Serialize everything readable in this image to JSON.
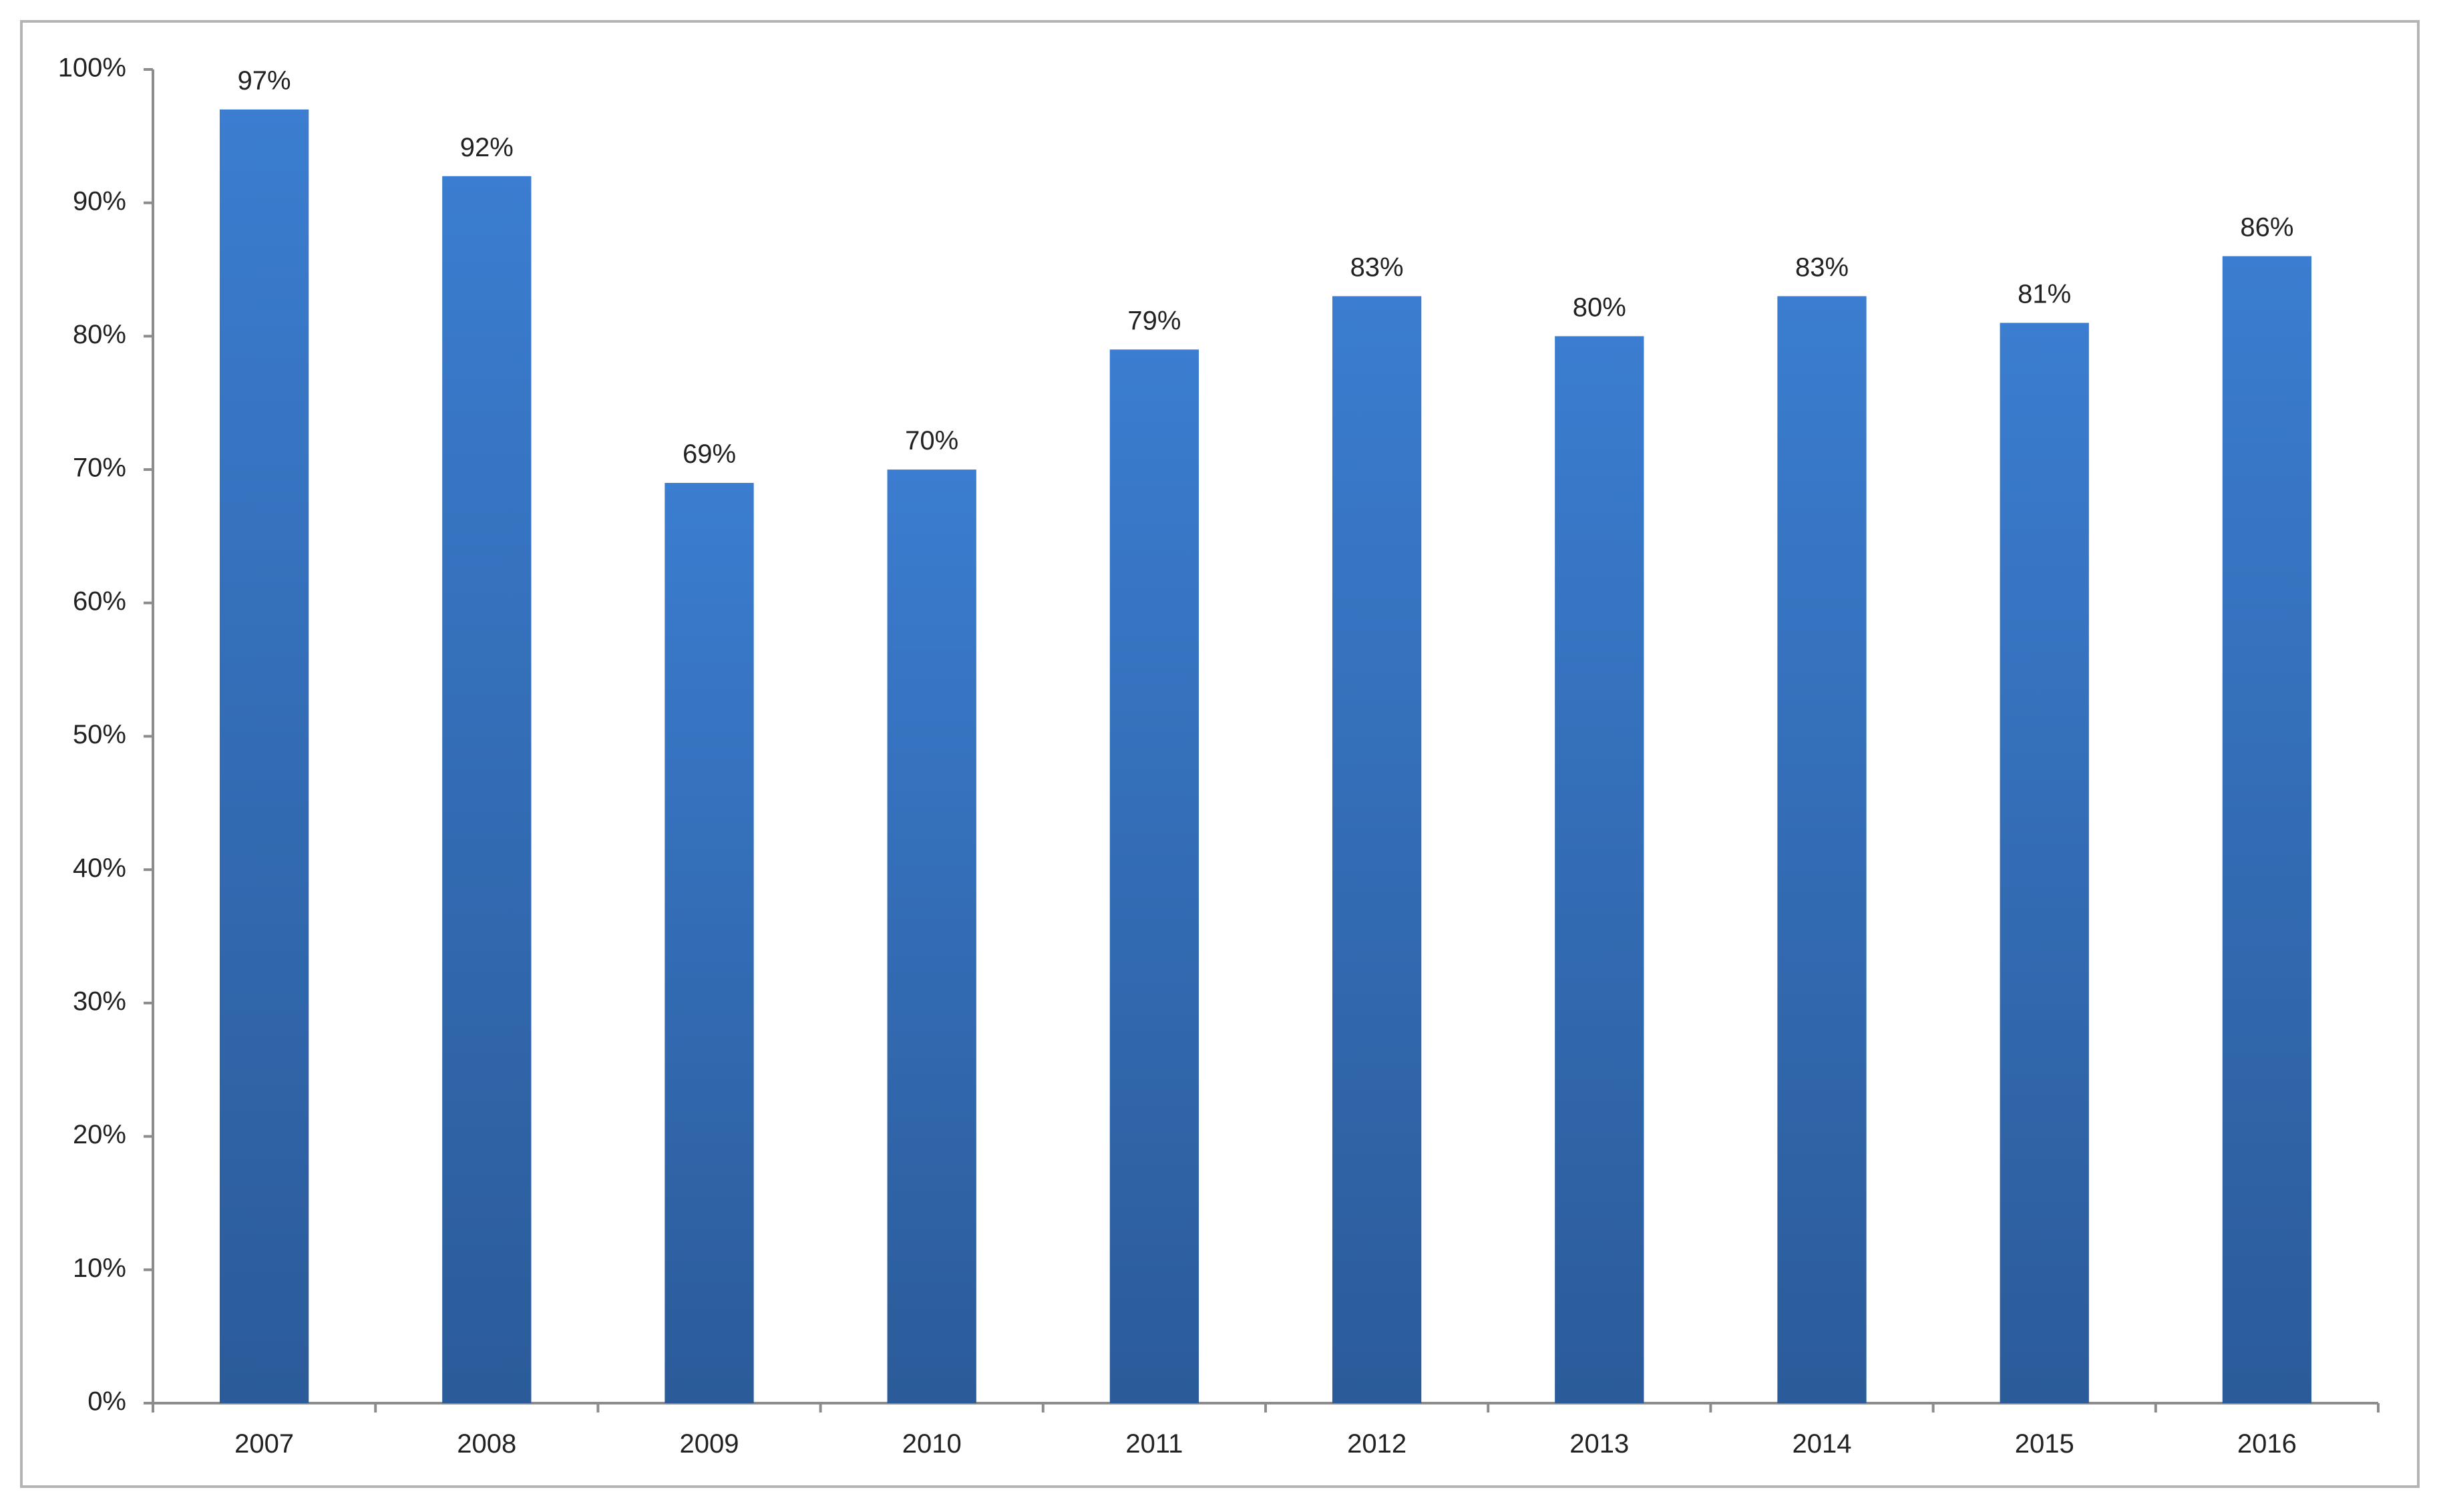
{
  "chart_data": {
    "type": "bar",
    "categories": [
      "2007",
      "2008",
      "2009",
      "2010",
      "2011",
      "2012",
      "2013",
      "2014",
      "2015",
      "2016"
    ],
    "values": [
      97,
      92,
      69,
      70,
      79,
      83,
      80,
      83,
      81,
      86
    ],
    "data_labels": [
      "97%",
      "92%",
      "69%",
      "70%",
      "79%",
      "83%",
      "80%",
      "83%",
      "81%",
      "86%"
    ],
    "y_ticks": [
      0,
      10,
      20,
      30,
      40,
      50,
      60,
      70,
      80,
      90,
      100
    ],
    "y_tick_labels": [
      "0%",
      "10%",
      "20%",
      "30%",
      "40%",
      "50%",
      "60%",
      "70%",
      "80%",
      "90%",
      "100%"
    ],
    "ylim": [
      0,
      100
    ],
    "title": "",
    "xlabel": "",
    "ylabel": "",
    "grid": false,
    "legend": "none",
    "colors": {
      "bar_top": "#3b7dd0",
      "bar_bottom": "#2b5b99",
      "axis": "#8c8c8c",
      "frame": "#b4b4b4",
      "text": "#222222"
    }
  }
}
